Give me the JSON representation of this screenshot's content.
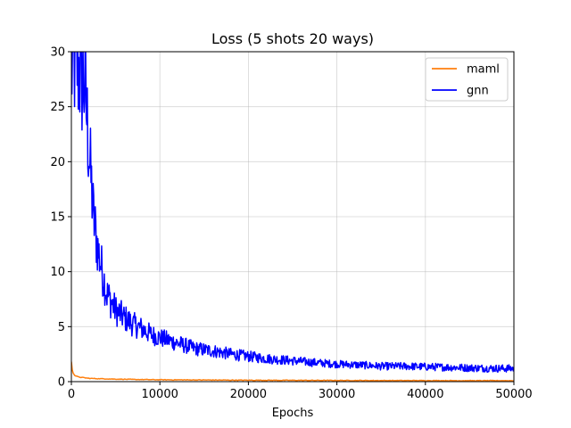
{
  "chart_data": {
    "type": "line",
    "title": "Loss (5 shots 20 ways)",
    "xlabel": "Epochs",
    "ylabel": "",
    "xlim": [
      0,
      50000
    ],
    "ylim": [
      0,
      30
    ],
    "xticks": [
      0,
      10000,
      20000,
      30000,
      40000,
      50000
    ],
    "yticks": [
      0,
      5,
      10,
      15,
      20,
      25,
      30
    ],
    "grid": true,
    "legend_position": "top-right",
    "series": [
      {
        "name": "maml",
        "color": "#ff7f0e",
        "x": [
          0,
          100,
          200,
          400,
          700,
          1000,
          1500,
          2000,
          3000,
          4000,
          5000,
          7000,
          10000,
          15000,
          20000,
          25000,
          30000,
          35000,
          40000,
          45000,
          50000
        ],
        "values": [
          1.8,
          1.1,
          0.8,
          0.55,
          0.45,
          0.4,
          0.35,
          0.3,
          0.27,
          0.25,
          0.23,
          0.2,
          0.17,
          0.15,
          0.13,
          0.12,
          0.11,
          0.1,
          0.1,
          0.09,
          0.09
        ]
      },
      {
        "name": "gnn",
        "color": "#0000ff",
        "x": [
          0,
          500,
          1000,
          1500,
          2000,
          2500,
          3000,
          3500,
          4000,
          5000,
          6000,
          7000,
          8000,
          9000,
          10000,
          12000,
          14000,
          16000,
          18000,
          20000,
          22000,
          25000,
          28000,
          30000,
          33000,
          35000,
          38000,
          40000,
          43000,
          45000,
          48000,
          50000
        ],
        "values": [
          28.5,
          29.5,
          28,
          27,
          21,
          15,
          12,
          10,
          8,
          6.5,
          5.8,
          5.2,
          4.8,
          4.3,
          4.0,
          3.5,
          3.0,
          2.8,
          2.5,
          2.3,
          2.1,
          1.9,
          1.7,
          1.6,
          1.5,
          1.4,
          1.4,
          1.35,
          1.3,
          1.25,
          1.2,
          1.2
        ]
      }
    ]
  }
}
